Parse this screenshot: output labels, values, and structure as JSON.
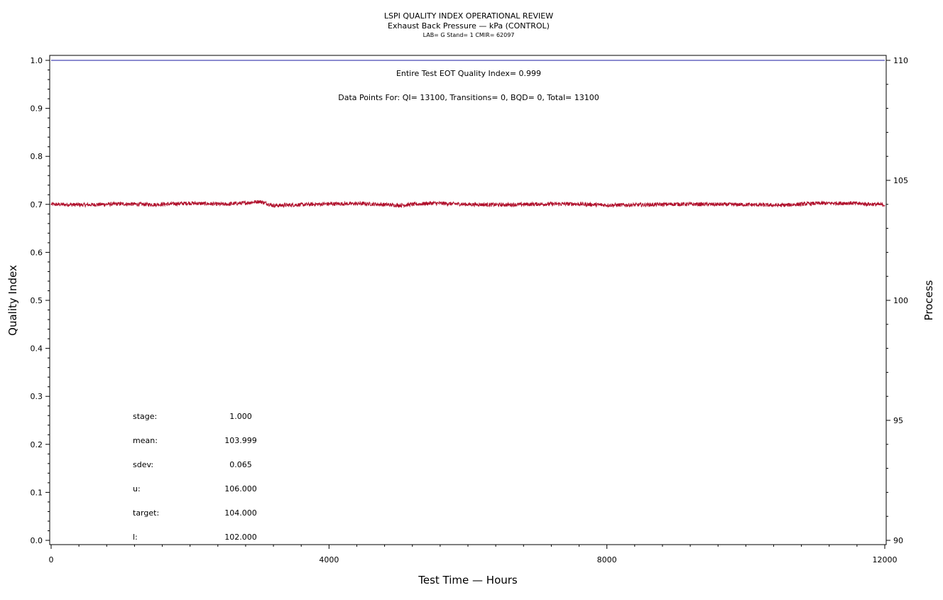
{
  "title": "LSPI QUALITY INDEX OPERATIONAL REVIEW",
  "subtitle": "Exhaust Back Pressure — kPa (CONTROL)",
  "subtitle2": "LAB= G Stand= 1 CMIR= 62097",
  "annotations": {
    "eot": "Entire Test EOT Quality Index=   0.999",
    "points": "Data Points For: QI= 13100, Transitions=     0, BQD=     0, Total= 13100"
  },
  "stats": [
    {
      "label": "stage:",
      "value": "1.000"
    },
    {
      "label": "mean:",
      "value": "103.999"
    },
    {
      "label": "sdev:",
      "value": "0.065"
    },
    {
      "label": "u:",
      "value": "106.000"
    },
    {
      "label": "target:",
      "value": "104.000"
    },
    {
      "label": "l:",
      "value": "102.000"
    }
  ],
  "colors": {
    "quality_line": "#1a1aa0",
    "process_line": "#b0102c",
    "axis": "#000000"
  },
  "chart_data": {
    "type": "line",
    "xlabel": "Test Time — Hours",
    "ylabel": "Quality Index",
    "y2label": "Process",
    "xlim": [
      0,
      12000
    ],
    "ylim": [
      0.0,
      1.0
    ],
    "y2lim": [
      90,
      110
    ],
    "x_ticks": [
      0,
      4000,
      8000,
      12000
    ],
    "y_ticks": [
      "0.0",
      "0.1",
      "0.2",
      "0.3",
      "0.4",
      "0.5",
      "0.6",
      "0.7",
      "0.8",
      "0.9",
      "1.0"
    ],
    "y2_ticks": [
      90,
      95,
      100,
      105,
      110
    ],
    "grid": false,
    "series": [
      {
        "axis": "left",
        "x": [
          0,
          12000
        ],
        "y": [
          1.0,
          1.0
        ]
      },
      {
        "axis": "right",
        "x": [
          0,
          500,
          1000,
          1500,
          2000,
          2500,
          2800,
          3000,
          3100,
          3200,
          3500,
          4000,
          4500,
          5000,
          5500,
          6000,
          6500,
          7000,
          7500,
          8000,
          8500,
          9000,
          9500,
          10000,
          10500,
          11000,
          11500,
          12000
        ],
        "y": [
          104.0,
          103.98,
          104.02,
          103.99,
          104.05,
          104.0,
          104.06,
          104.12,
          104.04,
          103.95,
          103.98,
          104.02,
          104.03,
          103.96,
          104.05,
          104.0,
          103.98,
          104.01,
          104.02,
          103.97,
          103.98,
          104.01,
          104.0,
          103.99,
          103.96,
          104.04,
          104.05,
          103.98
        ]
      }
    ]
  }
}
